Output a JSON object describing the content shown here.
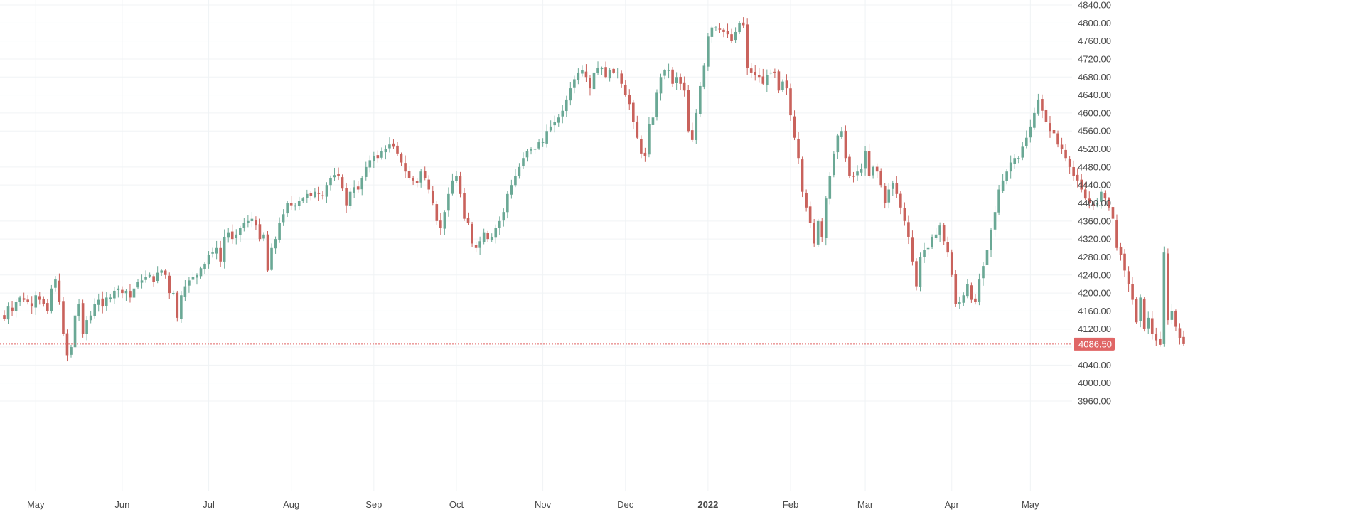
{
  "chart_data": {
    "type": "candlestick",
    "title": "",
    "xlabel": "",
    "ylabel": "",
    "ylim": [
      3950,
      4850
    ],
    "y_ticks": [
      3960,
      4000,
      4040,
      4080,
      4120,
      4160,
      4200,
      4240,
      4280,
      4320,
      4360,
      4400,
      4440,
      4480,
      4520,
      4560,
      4600,
      4640,
      4680,
      4720,
      4760,
      4800,
      4840
    ],
    "x_labels": [
      {
        "label": "May",
        "index": 8
      },
      {
        "label": "Jun",
        "index": 30
      },
      {
        "label": "Jul",
        "index": 52
      },
      {
        "label": "Aug",
        "index": 73
      },
      {
        "label": "Sep",
        "index": 94
      },
      {
        "label": "Oct",
        "index": 115
      },
      {
        "label": "Nov",
        "index": 137
      },
      {
        "label": "Dec",
        "index": 158
      },
      {
        "label": "2022",
        "index": 179,
        "bold": true
      },
      {
        "label": "Feb",
        "index": 200
      },
      {
        "label": "Mar",
        "index": 219
      },
      {
        "label": "Apr",
        "index": 241
      },
      {
        "label": "May",
        "index": 261
      }
    ],
    "grid": true,
    "current_price": 4086.5,
    "current_price_label": "4086.50",
    "colors": {
      "up": "#6aa895",
      "down": "#c9625c",
      "grid": "#f0f3f5",
      "price_line": "#e06666",
      "price_tag": "#e06666"
    },
    "closes": [
      4143,
      4170,
      4160,
      4180,
      4190,
      4185,
      4180,
      4170,
      4195,
      4185,
      4175,
      4160,
      4210,
      4230,
      4180,
      4110,
      4062,
      4080,
      4150,
      4175,
      4110,
      4140,
      4150,
      4175,
      4185,
      4170,
      4190,
      4190,
      4205,
      4210,
      4200,
      4205,
      4190,
      4210,
      4225,
      4228,
      4235,
      4240,
      4225,
      4245,
      4250,
      4240,
      4200,
      4200,
      4145,
      4195,
      4215,
      4228,
      4235,
      4240,
      4255,
      4265,
      4285,
      4290,
      4300,
      4270,
      4325,
      4335,
      4320,
      4330,
      4345,
      4355,
      4360,
      4365,
      4350,
      4320,
      4330,
      4250,
      4300,
      4320,
      4355,
      4375,
      4400,
      4395,
      4395,
      4405,
      4410,
      4420,
      4415,
      4425,
      4420,
      4415,
      4440,
      4455,
      4462,
      4460,
      4432,
      4395,
      4425,
      4435,
      4430,
      4455,
      4480,
      4495,
      4505,
      4500,
      4515,
      4520,
      4530,
      4525,
      4510,
      4490,
      4470,
      4455,
      4450,
      4445,
      4470,
      4455,
      4430,
      4400,
      4360,
      4345,
      4380,
      4420,
      4450,
      4460,
      4420,
      4365,
      4355,
      4310,
      4300,
      4315,
      4335,
      4320,
      4325,
      4345,
      4360,
      4380,
      4420,
      4440,
      4460,
      4480,
      4500,
      4515,
      4520,
      4520,
      4535,
      4535,
      4560,
      4570,
      4580,
      4590,
      4605,
      4630,
      4655,
      4675,
      4690,
      4695,
      4680,
      4655,
      4690,
      4700,
      4700,
      4680,
      4695,
      4690,
      4690,
      4665,
      4640,
      4620,
      4580,
      4545,
      4510,
      4505,
      4575,
      4590,
      4645,
      4680,
      4695,
      4695,
      4665,
      4680,
      4665,
      4650,
      4560,
      4540,
      4600,
      4660,
      4705,
      4770,
      4790,
      4790,
      4785,
      4780,
      4775,
      4760,
      4780,
      4800,
      4795,
      4700,
      4690,
      4685,
      4680,
      4665,
      4685,
      4690,
      4690,
      4650,
      4670,
      4655,
      4595,
      4545,
      4500,
      4425,
      4390,
      4355,
      4310,
      4360,
      4325,
      4410,
      4460,
      4510,
      4550,
      4560,
      4500,
      4460,
      4460,
      4470,
      4475,
      4515,
      4460,
      4480,
      4470,
      4440,
      4400,
      4430,
      4445,
      4420,
      4390,
      4360,
      4325,
      4270,
      4215,
      4280,
      4295,
      4300,
      4325,
      4330,
      4350,
      4315,
      4290,
      4240,
      4175,
      4180,
      4195,
      4220,
      4185,
      4180,
      4230,
      4260,
      4295,
      4340,
      4380,
      4430,
      4450,
      4470,
      4490,
      4500,
      4500,
      4525,
      4545,
      4570,
      4600,
      4630,
      4605,
      4580,
      4560,
      4555,
      4530,
      4520,
      4500,
      4480,
      4460,
      4450,
      4430,
      4410,
      4400,
      4395,
      4400,
      4425,
      4410,
      4390,
      4365,
      4300,
      4285,
      4250,
      4220,
      4185,
      4135,
      4190,
      4120,
      4145,
      4110,
      4095,
      4085,
      4290,
      4140,
      4160,
      4125,
      4100,
      4086.5
    ]
  }
}
